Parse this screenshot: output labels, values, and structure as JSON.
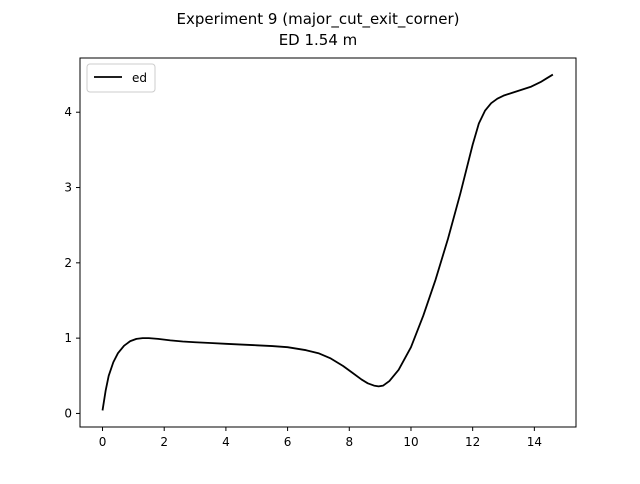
{
  "figure": {
    "title_line1": "Experiment 9 (major_cut_exit_corner)",
    "title_line2": "ED 1.54 m"
  },
  "chart_data": {
    "type": "line",
    "title": "Experiment 9 (major_cut_exit_corner)\nED 1.54 m",
    "xlabel": "",
    "ylabel": "",
    "xlim": [
      -0.73,
      15.35
    ],
    "ylim": [
      -0.18,
      4.72
    ],
    "xticks": [
      0,
      2,
      4,
      6,
      8,
      10,
      12,
      14
    ],
    "yticks": [
      0,
      1,
      2,
      3,
      4
    ],
    "grid": false,
    "legend": {
      "position": "upper-left",
      "entries": [
        "ed"
      ]
    },
    "series": [
      {
        "name": "ed",
        "color": "#000000",
        "x": [
          0.0,
          0.1,
          0.2,
          0.35,
          0.5,
          0.7,
          0.9,
          1.1,
          1.3,
          1.5,
          1.8,
          2.2,
          2.6,
          3.0,
          3.5,
          4.0,
          4.5,
          5.0,
          5.5,
          6.0,
          6.3,
          6.6,
          7.0,
          7.4,
          7.8,
          8.1,
          8.4,
          8.6,
          8.8,
          8.95,
          9.1,
          9.3,
          9.6,
          10.0,
          10.4,
          10.8,
          11.2,
          11.6,
          12.0,
          12.2,
          12.4,
          12.6,
          12.8,
          13.0,
          13.3,
          13.6,
          13.9,
          14.2,
          14.4,
          14.6
        ],
        "y": [
          0.04,
          0.3,
          0.5,
          0.68,
          0.8,
          0.9,
          0.96,
          0.99,
          1.0,
          1.0,
          0.99,
          0.97,
          0.955,
          0.945,
          0.935,
          0.925,
          0.915,
          0.905,
          0.895,
          0.88,
          0.86,
          0.84,
          0.8,
          0.73,
          0.63,
          0.54,
          0.45,
          0.4,
          0.37,
          0.36,
          0.37,
          0.43,
          0.58,
          0.88,
          1.3,
          1.78,
          2.32,
          2.92,
          3.57,
          3.85,
          4.02,
          4.12,
          4.18,
          4.22,
          4.26,
          4.3,
          4.34,
          4.4,
          4.45,
          4.5
        ]
      }
    ]
  }
}
